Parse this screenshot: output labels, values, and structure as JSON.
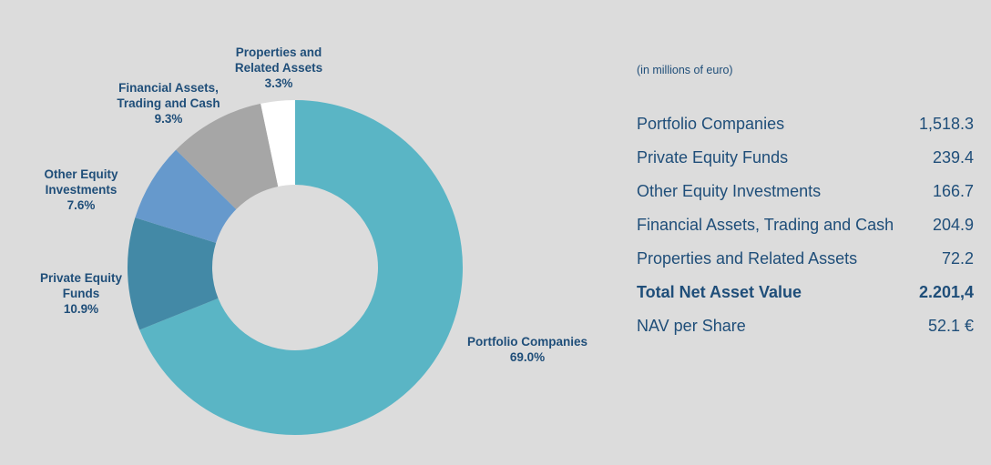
{
  "chart_data": {
    "type": "pie",
    "variant": "donut",
    "slices": [
      {
        "name": "Portfolio Companies",
        "value": 69.0,
        "label": "69.0%",
        "color": "#5ab5c5"
      },
      {
        "name": "Private Equity\nFunds",
        "value": 10.9,
        "label": "10.9%",
        "color": "#4389a6"
      },
      {
        "name": "Other Equity\nInvestments",
        "value": 7.6,
        "label": "7.6%",
        "color": "#6699cc"
      },
      {
        "name": "Financial Assets,\nTrading and Cash",
        "value": 9.3,
        "label": "9.3%",
        "color": "#a6a6a6"
      },
      {
        "name": "Properties and\nRelated Assets",
        "value": 3.3,
        "label": "3.3%",
        "color": "#ffffff"
      }
    ]
  },
  "table": {
    "units": "(in millions of euro)",
    "rows": [
      {
        "label": "Portfolio Companies",
        "value": "1,518.3",
        "bold": false
      },
      {
        "label": "Private Equity Funds",
        "value": "239.4",
        "bold": false
      },
      {
        "label": "Other Equity Investments",
        "value": "166.7",
        "bold": false
      },
      {
        "label": "Financial Assets, Trading and Cash",
        "value": "204.9",
        "bold": false
      },
      {
        "label": "Properties and Related Assets",
        "value": "72.2",
        "bold": false
      },
      {
        "label": "Total Net Asset Value",
        "value": "2.201,4",
        "bold": true
      },
      {
        "label": "NAV per Share",
        "value": "52.1 €",
        "bold": false
      }
    ]
  },
  "colors": {
    "label_text": "#1f4e79",
    "background": "#dcdcdc"
  }
}
